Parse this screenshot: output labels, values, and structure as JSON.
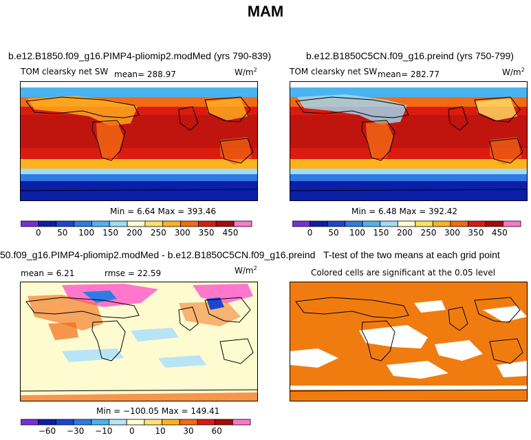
{
  "figure_title": "MAM",
  "chart_data": [
    {
      "type": "heatmap",
      "panel": "top-left",
      "title": "b.e12.B1850.f09_g16.PIMP4-pliomip2.modMed (yrs 790-839)",
      "variable": "TOM clearsky net SW",
      "mean_label": "mean= 288.97",
      "units": "W/m",
      "units_sup": "2",
      "stats": "Min =   6.64 Max = 393.46",
      "colorbar_ticks": [
        "0",
        "50",
        "100",
        "150",
        "200",
        "250",
        "300",
        "350",
        "450"
      ],
      "colorbar_colors": [
        "#7a2fd6",
        "#0b1fa8",
        "#1a47d0",
        "#2f7be6",
        "#4bb3f2",
        "#9fdcf7",
        "#fffbd0",
        "#ffe066",
        "#ffb21f",
        "#f26a14",
        "#d91c0f",
        "#a80a0a",
        "#ff77cc"
      ]
    },
    {
      "type": "heatmap",
      "panel": "top-right",
      "title": "b.e12.B1850C5CN.f09_g16.preind (yrs 750-799)",
      "variable": "TOM clearsky net SW",
      "mean_label": "mean= 282.77",
      "units": "W/m",
      "units_sup": "2",
      "stats": "Min =   6.48 Max = 392.42",
      "colorbar_ticks": [
        "0",
        "50",
        "100",
        "150",
        "200",
        "250",
        "300",
        "350",
        "450"
      ],
      "colorbar_colors": [
        "#7a2fd6",
        "#0b1fa8",
        "#1a47d0",
        "#2f7be6",
        "#4bb3f2",
        "#9fdcf7",
        "#fffbd0",
        "#ffe066",
        "#ffb21f",
        "#f26a14",
        "#d91c0f",
        "#a80a0a",
        "#ff77cc"
      ]
    },
    {
      "type": "heatmap",
      "panel": "bottom-left",
      "title": "50.f09_g16.PIMP4-pliomip2.modMed - b.e12.B1850C5CN.f09_g16.preind",
      "mean_label": "mean =   6.21",
      "rmse_label": "rmse =  22.59",
      "units": "W/m",
      "units_sup": "2",
      "stats": "Min = −100.05 Max = 149.41",
      "colorbar_ticks": [
        "−60",
        "−30",
        "−10",
        "0",
        "10",
        "30",
        "60"
      ],
      "colorbar_colors": [
        "#7a2fd6",
        "#0b1fa8",
        "#1a47d0",
        "#2f7be6",
        "#4bb3f2",
        "#b8e4f7",
        "#fffbd0",
        "#ffe27a",
        "#ffb21f",
        "#f26a14",
        "#d91c0f",
        "#a80a0a",
        "#ff77cc"
      ]
    },
    {
      "type": "heatmap",
      "panel": "bottom-right",
      "title": "T-test of the two means at each grid point",
      "subtitle": "Colored cells are significant at the 0.05 level",
      "colors": {
        "significant": "#f07c10",
        "not_significant": "#ffffff"
      }
    }
  ]
}
